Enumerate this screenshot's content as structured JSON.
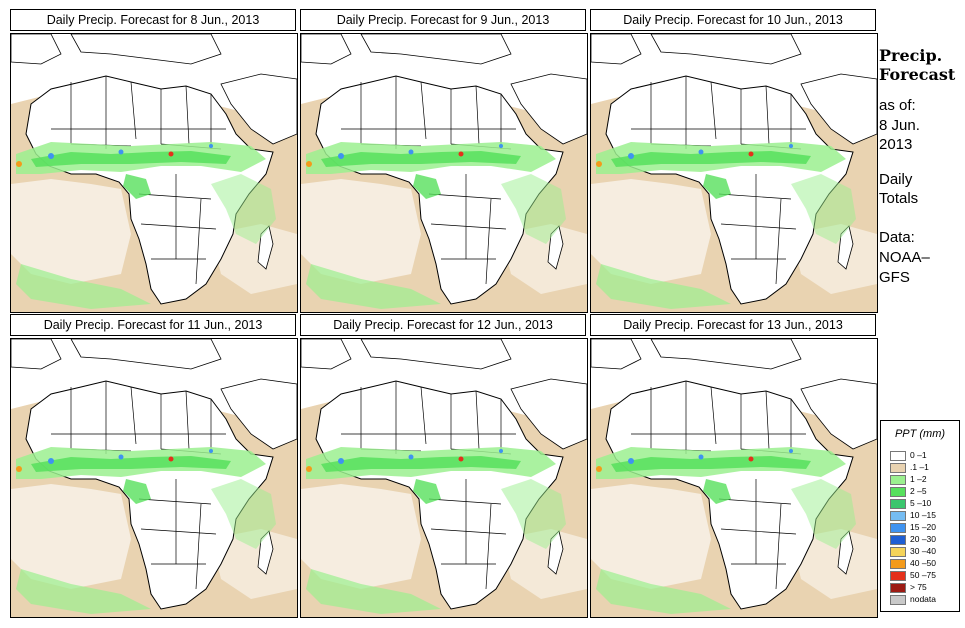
{
  "panels": [
    {
      "title": "Daily Precip. Forecast for  8 Jun., 2013"
    },
    {
      "title": "Daily Precip. Forecast for  9 Jun., 2013"
    },
    {
      "title": "Daily Precip. Forecast for  10 Jun., 2013"
    },
    {
      "title": "Daily Precip. Forecast for  11 Jun., 2013"
    },
    {
      "title": "Daily Precip. Forecast for  12 Jun., 2013"
    },
    {
      "title": "Daily Precip. Forecast for  13 Jun., 2013"
    }
  ],
  "side": {
    "title_line1": "Precip.",
    "title_line2": "Forecast",
    "asof": "as of:",
    "date1": "8 Jun.",
    "date2": "2013",
    "daily1": "Daily",
    "daily2": "Totals",
    "data1": "Data:",
    "data2": "NOAA–",
    "data3": "GFS"
  },
  "legend": {
    "title": "PPT (mm)",
    "entries": [
      {
        "label": "0 –1",
        "color": "#ffffff"
      },
      {
        "label": ".1 –1",
        "color": "#e9d3b1"
      },
      {
        "label": "1 –2",
        "color": "#9bf08f"
      },
      {
        "label": "2 –5",
        "color": "#57e05d"
      },
      {
        "label": "5 –10",
        "color": "#3bc66d"
      },
      {
        "label": "10 –15",
        "color": "#75bcf2"
      },
      {
        "label": "15 –20",
        "color": "#3f93f0"
      },
      {
        "label": "20 –30",
        "color": "#1e5ed3"
      },
      {
        "label": "30 –40",
        "color": "#f5d45a"
      },
      {
        "label": "40 –50",
        "color": "#f39a1b"
      },
      {
        "label": "50 –75",
        "color": "#e4301b"
      },
      {
        "label": "> 75",
        "color": "#9c1b14"
      },
      {
        "label": "nodata",
        "color": "#c9c9c9"
      }
    ]
  },
  "colors": {
    "land": "#ffffff",
    "dry": "#e9d3b1",
    "light": "#9bf08f",
    "moderate": "#57e05d",
    "blue": "#3f93f0",
    "red": "#e4301b",
    "border": "#000000"
  }
}
